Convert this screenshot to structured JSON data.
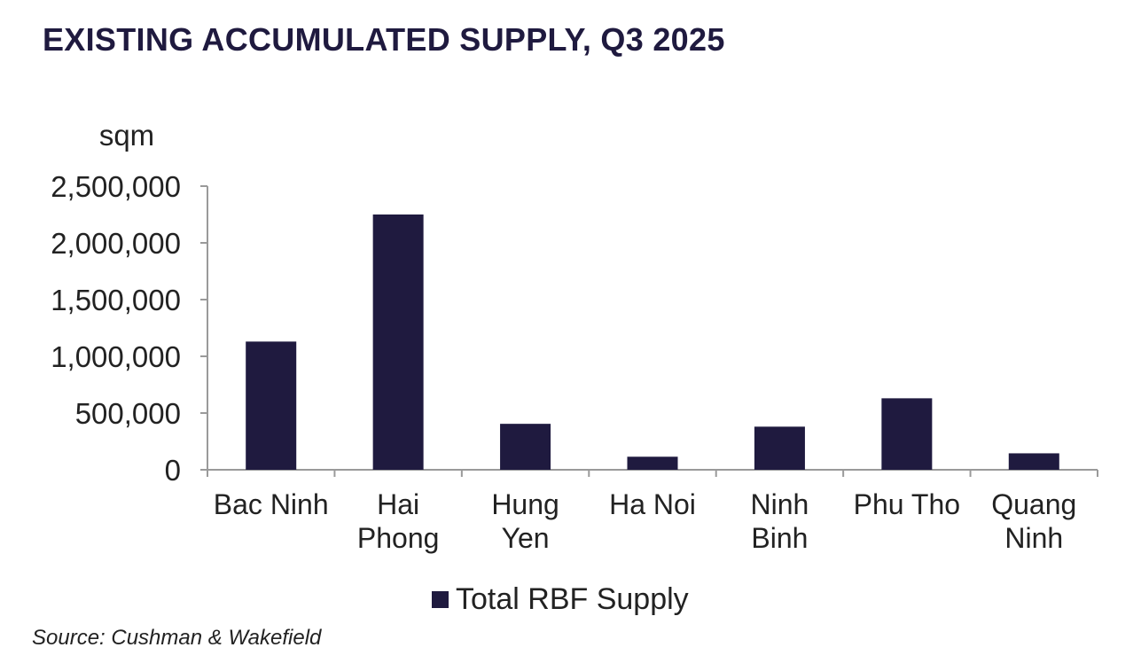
{
  "chart_data": {
    "type": "bar",
    "title": "EXISTING ACCUMULATED SUPPLY, Q3 2025",
    "ylabel": "sqm",
    "xlabel": "",
    "categories": [
      [
        "Bac Ninh"
      ],
      [
        "Hai",
        "Phong"
      ],
      [
        "Hung",
        "Yen"
      ],
      [
        "Ha Noi"
      ],
      [
        "Ninh",
        "Binh"
      ],
      [
        "Phu Tho"
      ],
      [
        "Quang",
        "Ninh"
      ]
    ],
    "series": [
      {
        "name": "Total RBF Supply",
        "values": [
          1130000,
          2250000,
          405000,
          115000,
          380000,
          630000,
          145000
        ]
      }
    ],
    "ylim": [
      0,
      2500000
    ],
    "yticks": [
      0,
      500000,
      1000000,
      1500000,
      2000000,
      2500000
    ],
    "ytick_labels": [
      "0",
      "500,000",
      "1,000,000",
      "1,500,000",
      "2,000,000",
      "2,500,000"
    ],
    "grid": false,
    "legend": "bottom-center",
    "bar_color": "#1f1a3f",
    "axis_color": "#9a9a9a"
  },
  "source": "Source: Cushman & Wakefield"
}
